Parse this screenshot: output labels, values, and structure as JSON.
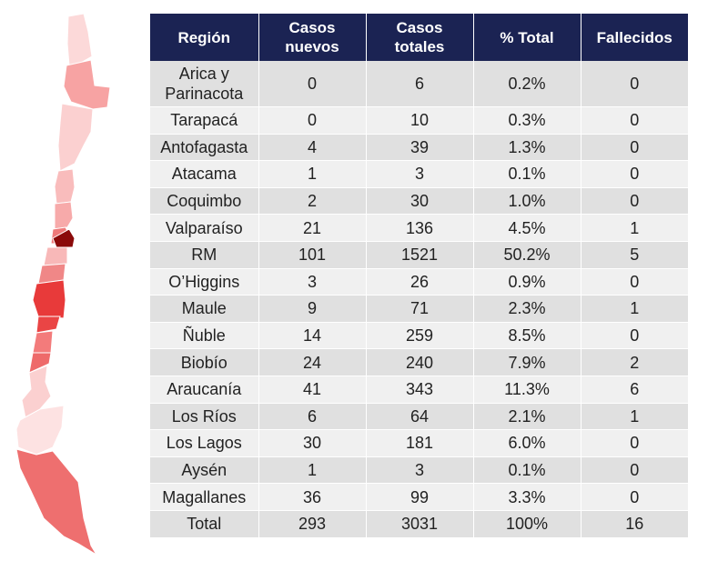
{
  "table": {
    "headers": [
      "Región",
      "Casos\nnuevos",
      "Casos\ntotales",
      "% Total",
      "Fallecidos"
    ],
    "rows": [
      [
        "Arica y Parinacota",
        "0",
        "6",
        "0.2%",
        "0"
      ],
      [
        "Tarapacá",
        "0",
        "10",
        "0.3%",
        "0"
      ],
      [
        "Antofagasta",
        "4",
        "39",
        "1.3%",
        "0"
      ],
      [
        "Atacama",
        "1",
        "3",
        "0.1%",
        "0"
      ],
      [
        "Coquimbo",
        "2",
        "30",
        "1.0%",
        "0"
      ],
      [
        "Valparaíso",
        "21",
        "136",
        "4.5%",
        "1"
      ],
      [
        "RM",
        "101",
        "1521",
        "50.2%",
        "5"
      ],
      [
        "O’Higgins",
        "3",
        "26",
        "0.9%",
        "0"
      ],
      [
        "Maule",
        "9",
        "71",
        "2.3%",
        "1"
      ],
      [
        "Ñuble",
        "14",
        "259",
        "8.5%",
        "0"
      ],
      [
        "Biobío",
        "24",
        "240",
        "7.9%",
        "2"
      ],
      [
        "Araucanía",
        "41",
        "343",
        "11.3%",
        "6"
      ],
      [
        "Los Ríos",
        "6",
        "64",
        "2.1%",
        "1"
      ],
      [
        "Los Lagos",
        "30",
        "181",
        "6.0%",
        "0"
      ],
      [
        "Aysén",
        "1",
        "3",
        "0.1%",
        "0"
      ],
      [
        "Magallanes",
        "36",
        "99",
        "3.3%",
        "0"
      ],
      [
        "Total",
        "293",
        "3031",
        "100%",
        "16"
      ]
    ]
  },
  "map": {
    "regions": [
      {
        "name": "Arica y Parinacota",
        "color": "#fcd9d9"
      },
      {
        "name": "Tarapacá",
        "color": "#f7a3a3"
      },
      {
        "name": "Antofagasta",
        "color": "#fbd0d0"
      },
      {
        "name": "Atacama",
        "color": "#f9bcbc"
      },
      {
        "name": "Coquimbo",
        "color": "#f7aaaa"
      },
      {
        "name": "Valparaíso",
        "color": "#ee7a7a"
      },
      {
        "name": "RM",
        "color": "#8b0a0a"
      },
      {
        "name": "O’Higgins",
        "color": "#f8b8b8"
      },
      {
        "name": "Maule",
        "color": "#f08787"
      },
      {
        "name": "Ñuble",
        "color": "#e83a3a"
      },
      {
        "name": "Biobío",
        "color": "#ea4545"
      },
      {
        "name": "Araucanía",
        "color": "#f37b7b"
      },
      {
        "name": "Los Ríos",
        "color": "#ee6a6a"
      },
      {
        "name": "Los Lagos",
        "color": "#fbd0d0"
      },
      {
        "name": "Aysén",
        "color": "#fde2e2"
      },
      {
        "name": "Magallanes",
        "color": "#ee6f6f"
      }
    ]
  }
}
